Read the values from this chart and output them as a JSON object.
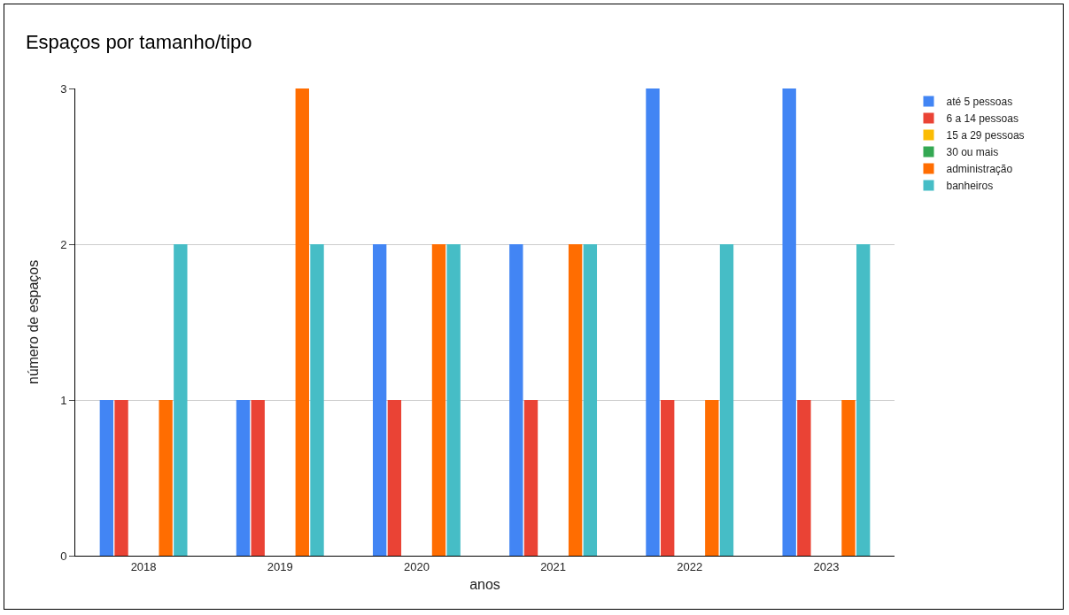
{
  "chart_data": {
    "type": "bar",
    "title": "Espaços por tamanho/tipo",
    "xlabel": "anos",
    "ylabel": "número de espaços",
    "categories": [
      "2018",
      "2019",
      "2020",
      "2021",
      "2022",
      "2023"
    ],
    "series": [
      {
        "name": "até 5 pessoas",
        "color": "#4285f4",
        "values": [
          1,
          1,
          2,
          2,
          3,
          3
        ]
      },
      {
        "name": "6 a 14 pessoas",
        "color": "#ea4335",
        "values": [
          1,
          1,
          1,
          1,
          1,
          1
        ]
      },
      {
        "name": "15 a 29 pessoas",
        "color": "#fbbc04",
        "values": [
          0,
          0,
          0,
          0,
          0,
          0
        ]
      },
      {
        "name": "30 ou mais",
        "color": "#34a853",
        "values": [
          0,
          0,
          0,
          0,
          0,
          0
        ]
      },
      {
        "name": "administração",
        "color": "#ff6d01",
        "values": [
          1,
          3,
          2,
          2,
          1,
          1
        ]
      },
      {
        "name": "banheiros",
        "color": "#46bdc6",
        "values": [
          2,
          2,
          2,
          2,
          2,
          2
        ]
      }
    ],
    "ylim": [
      0,
      3
    ],
    "yticks": [
      0,
      1,
      2,
      3
    ],
    "grid": "y",
    "legend": "top right"
  }
}
